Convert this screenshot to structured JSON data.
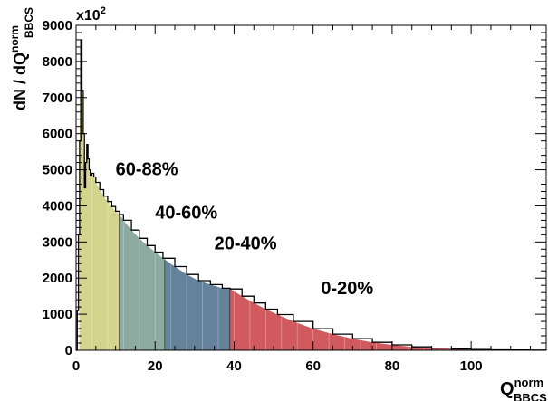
{
  "chart_data": {
    "type": "area",
    "xlabel": {
      "main": "Q",
      "sup": "norm",
      "sub": "BBCS"
    },
    "ylabel": {
      "main": "dN / dQ",
      "sup": "norm",
      "sub": "BBCS"
    },
    "y_multiplier": "x10",
    "y_multiplier_exp": "2",
    "xlim": [
      0,
      119
    ],
    "ylim": [
      0,
      9000
    ],
    "x_ticks": [
      "0",
      "20",
      "40",
      "60",
      "80",
      "100"
    ],
    "y_ticks": [
      "0",
      "1000",
      "2000",
      "3000",
      "4000",
      "5000",
      "6000",
      "7000",
      "8000",
      "9000"
    ],
    "grid": false,
    "curve": {
      "x": [
        0.0,
        0.3,
        0.6,
        0.9,
        1.2,
        1.5,
        1.8,
        2.1,
        2.4,
        2.7,
        3.0,
        3.3,
        3.6,
        4.0,
        4.5,
        5.0,
        6,
        7,
        8,
        9,
        10,
        11,
        12,
        14,
        16,
        18,
        20,
        22,
        25,
        28,
        31,
        34,
        37,
        39,
        42,
        45,
        48,
        51,
        55,
        60,
        65,
        70,
        75,
        80,
        85,
        90,
        95,
        100,
        105,
        110,
        115,
        119
      ],
      "y": [
        0,
        1100,
        3200,
        5800,
        8600,
        7200,
        6000,
        4500,
        5200,
        5700,
        5300,
        5000,
        4850,
        4900,
        4800,
        4650,
        4450,
        4270,
        4120,
        3980,
        3850,
        3760,
        3600,
        3330,
        3100,
        2900,
        2720,
        2550,
        2320,
        2100,
        1930,
        1820,
        1720,
        1700,
        1500,
        1310,
        1140,
        990,
        800,
        600,
        450,
        320,
        220,
        150,
        95,
        60,
        35,
        20,
        12,
        8,
        5,
        3
      ]
    },
    "centrality_bins": [
      {
        "label": "60-88%",
        "x_range": [
          0.8,
          11.0
        ],
        "color": "#d4d48c"
      },
      {
        "label": "40-60%",
        "x_range": [
          11.0,
          22.5
        ],
        "color": "#8caaa0"
      },
      {
        "label": "20-40%",
        "x_range": [
          22.5,
          39.0
        ],
        "color": "#64829a"
      },
      {
        "label": "0-20%",
        "x_range": [
          39.0,
          119.0
        ],
        "color": "#d05a5e"
      }
    ],
    "annotations": [
      {
        "text": "60-88%",
        "x": 10,
        "y": 4850
      },
      {
        "text": "40-60%",
        "x": 20,
        "y": 3650
      },
      {
        "text": "20-40%",
        "x": 35,
        "y": 2800
      },
      {
        "text": "0-20%",
        "x": 62,
        "y": 1550
      }
    ]
  }
}
